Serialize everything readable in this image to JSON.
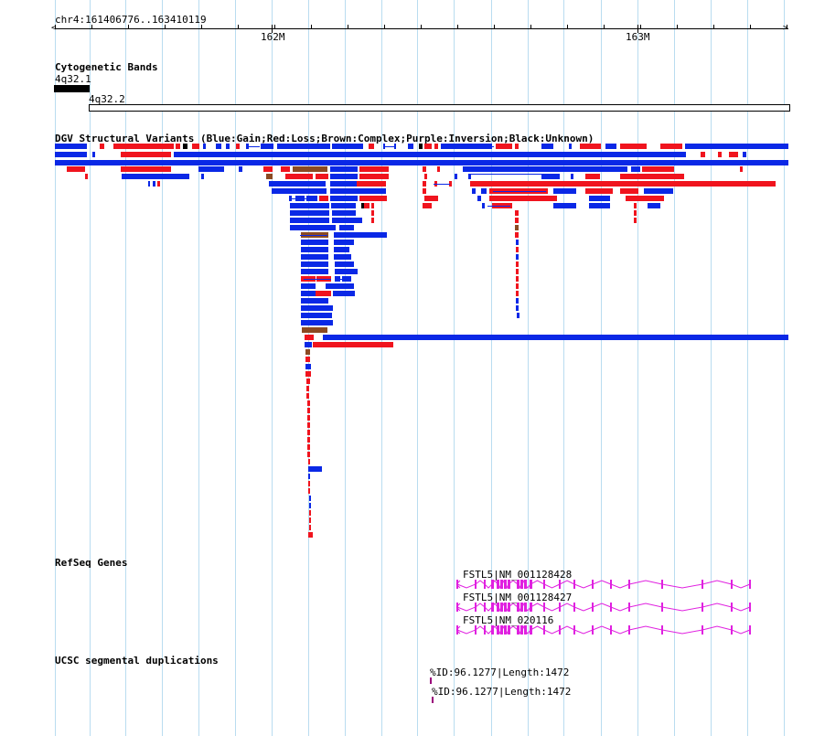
{
  "ruler": {
    "position": "chr4:161406776..163410119",
    "labels": [
      "162M",
      "163M"
    ]
  },
  "tracks": {
    "cytoband": {
      "title": "Cytogenetic Bands",
      "bands": [
        "4q32.1",
        "4q32.2"
      ]
    },
    "dgv": {
      "title": "DGV Structural Variants (Blue:Gain;Red:Loss;Brown:Complex;Purple:Inversion;Black:Unknown)",
      "colors": {
        "gain": "#0a28e6",
        "loss": "#f0141e",
        "complex": "#8b4a22",
        "inversion": "#800080",
        "unknown": "#000000"
      }
    },
    "refseq": {
      "title": "RefSeq Genes",
      "genes": [
        "FSTL5|NM_001128428",
        "FSTL5|NM_001128427",
        "FSTL5|NM_020116"
      ],
      "color": "#e020e0"
    },
    "segdup": {
      "title": "UCSC segmental duplications",
      "items": [
        "%ID:96.1277|Length:1472",
        "%ID:96.1277|Length:1472"
      ],
      "color": "#9a007a"
    }
  }
}
